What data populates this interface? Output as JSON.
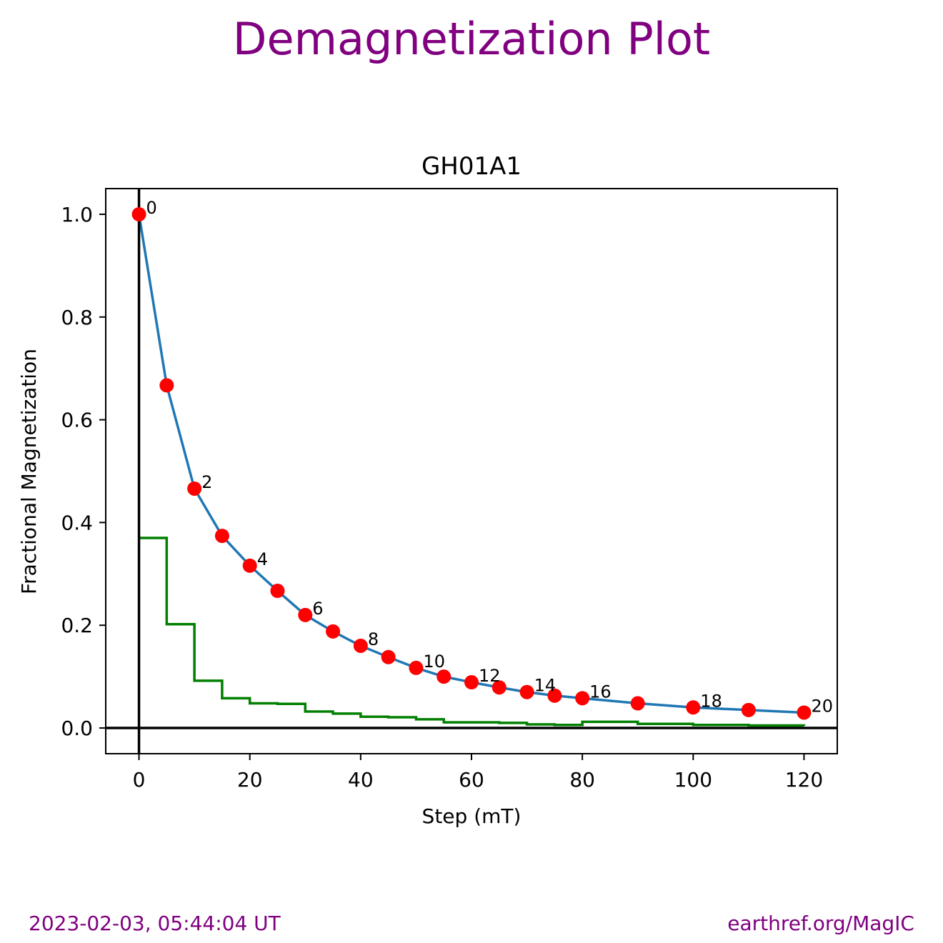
{
  "figure": {
    "title": "Demagnetization Plot",
    "timestamp": "2023-02-03, 05:44:04 UT",
    "source": "earthref.org/MagIC",
    "title_color": "#800080"
  },
  "chart_data": {
    "type": "line",
    "title": "GH01A1",
    "xlabel": "Step (mT)",
    "ylabel": "Fractional Magnetization",
    "xlim": [
      -6,
      126
    ],
    "ylim": [
      -0.05,
      1.05
    ],
    "xticks": [
      0,
      20,
      40,
      60,
      80,
      100,
      120
    ],
    "yticks": [
      0.0,
      0.2,
      0.4,
      0.6,
      0.8,
      1.0
    ],
    "grid": false,
    "x": [
      0,
      5,
      10,
      15,
      20,
      25,
      30,
      35,
      40,
      45,
      50,
      55,
      60,
      65,
      70,
      75,
      80,
      90,
      100,
      110,
      120
    ],
    "series": [
      {
        "color": "#1f77b4",
        "marker_color": "#ff0000",
        "values": [
          1.0,
          0.667,
          0.466,
          0.374,
          0.316,
          0.267,
          0.22,
          0.188,
          0.16,
          0.138,
          0.117,
          0.1,
          0.089,
          0.079,
          0.07,
          0.063,
          0.058,
          0.048,
          0.04,
          0.035,
          0.03
        ]
      },
      {
        "color": "#008000",
        "style": "step",
        "values": [
          0.37,
          0.202,
          0.092,
          0.058,
          0.048,
          0.047,
          0.032,
          0.028,
          0.022,
          0.021,
          0.017,
          0.011,
          0.011,
          0.01,
          0.007,
          0.006,
          0.012,
          0.008,
          0.006,
          0.005,
          0.004
        ]
      }
    ],
    "point_labels": [
      {
        "index": 0,
        "text": "0"
      },
      {
        "index": 2,
        "text": "2"
      },
      {
        "index": 4,
        "text": "4"
      },
      {
        "index": 6,
        "text": "6"
      },
      {
        "index": 8,
        "text": "8"
      },
      {
        "index": 10,
        "text": "10"
      },
      {
        "index": 12,
        "text": "12"
      },
      {
        "index": 14,
        "text": "14"
      },
      {
        "index": 16,
        "text": "16"
      },
      {
        "index": 18,
        "text": "18"
      },
      {
        "index": 20,
        "text": "20"
      }
    ],
    "reference_lines": {
      "x": 0,
      "y": 0,
      "color": "#000000"
    }
  }
}
